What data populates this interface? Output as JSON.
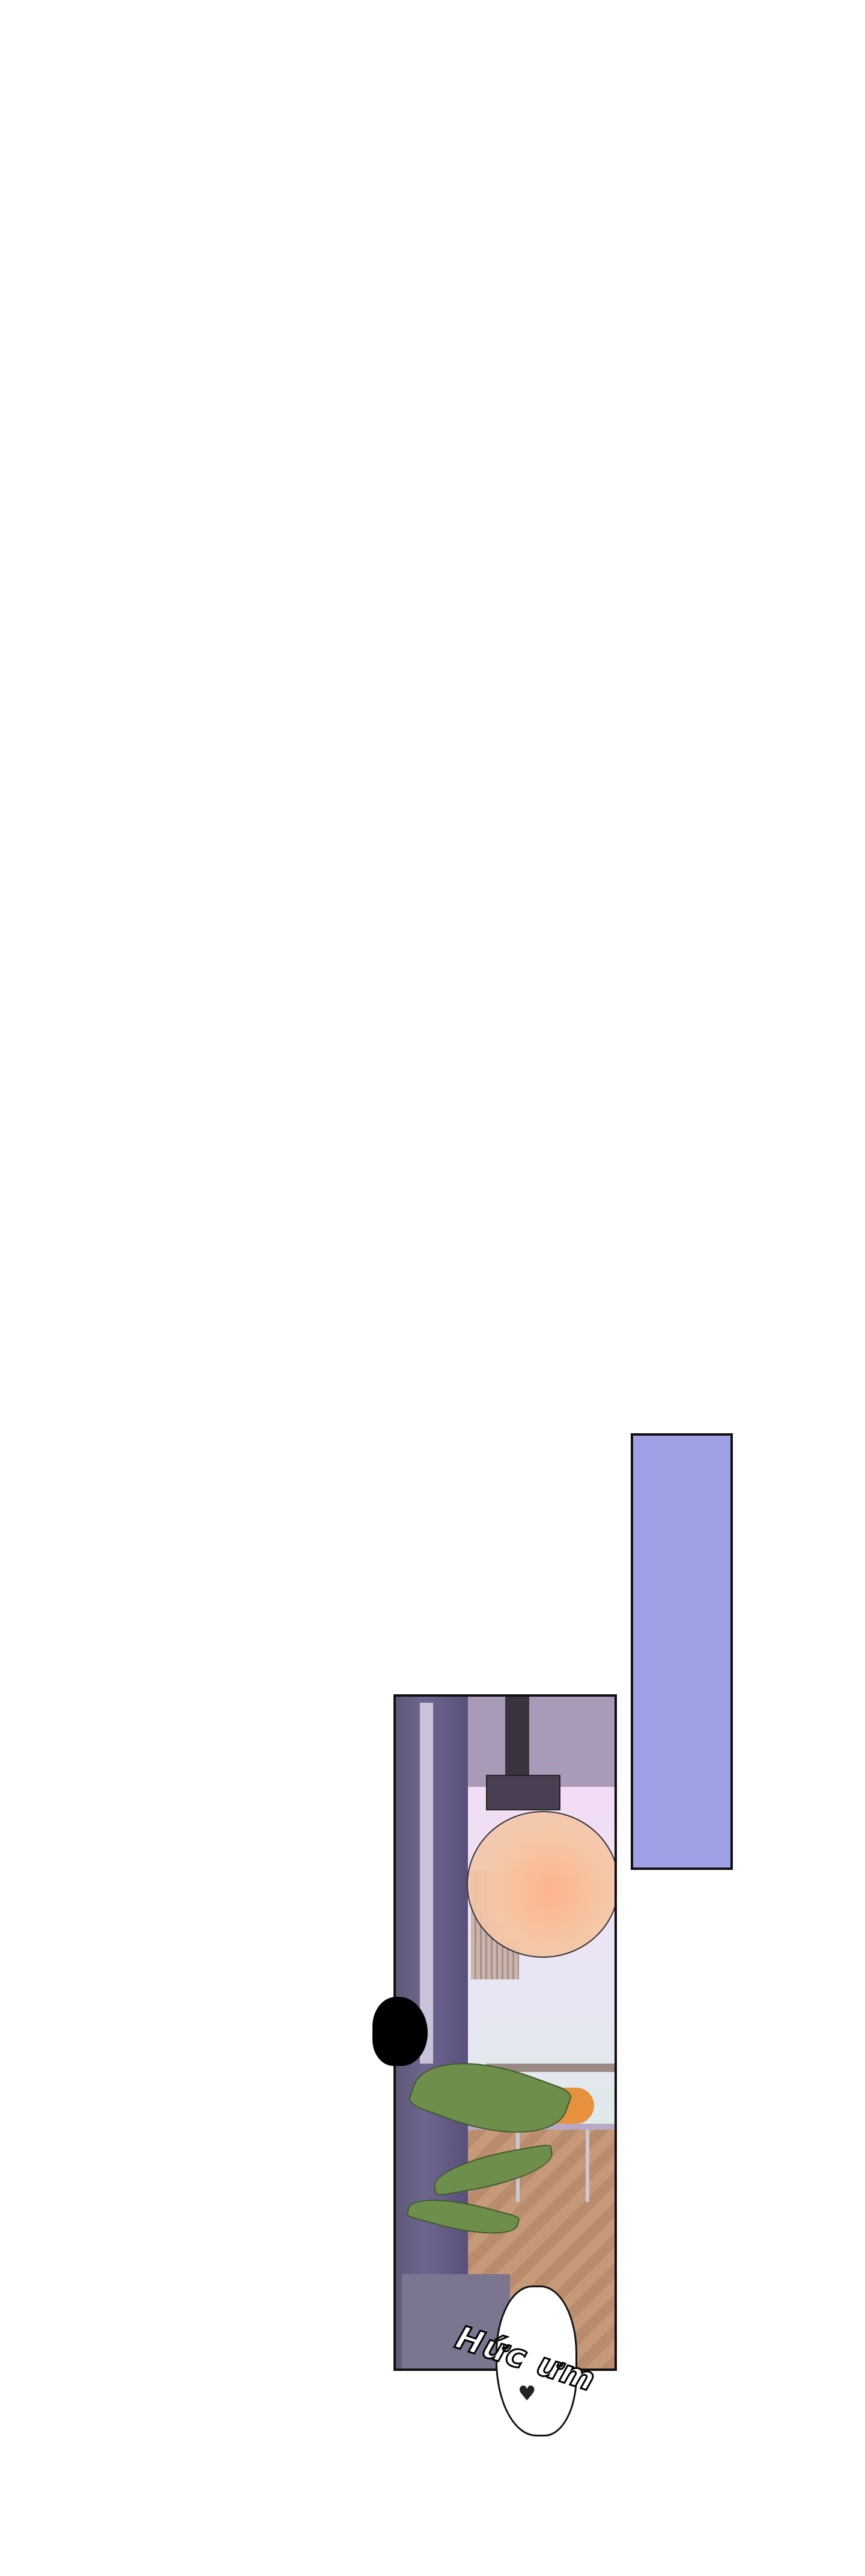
{
  "panels": {
    "blue_panel": {
      "color": "#9ea1e6"
    },
    "scene_panel": {
      "description_icons": [
        "pendant-lamp",
        "plant",
        "office-chair"
      ]
    }
  },
  "sound_effect": {
    "text": "Hức ưm"
  },
  "heart_glyph": "♥"
}
